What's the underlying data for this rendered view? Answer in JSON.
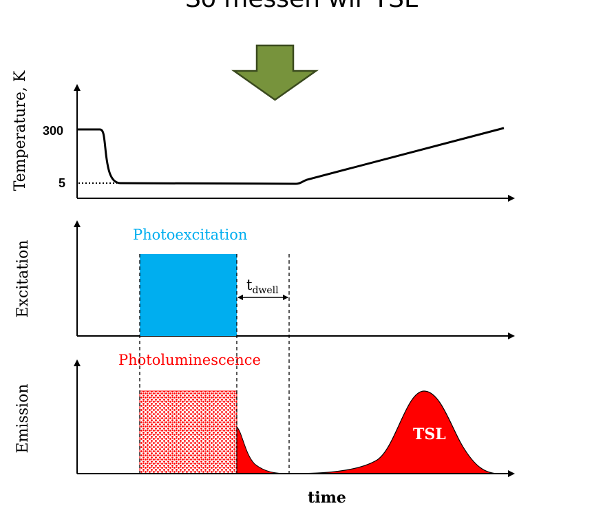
{
  "title": "So messen wir TSL",
  "colors": {
    "arrow_fill": "#77933c",
    "arrow_stroke": "#3a4a1e",
    "excitation": "#00aeef",
    "emission": "#ff0000"
  },
  "panels": {
    "temperature": {
      "ylabel": "Temperature, K",
      "ticks": [
        "300",
        "5"
      ]
    },
    "excitation": {
      "ylabel": "Excitation",
      "pulse_label": "Photoexcitation",
      "dwell_label": "t",
      "dwell_subscript": "dwell"
    },
    "emission": {
      "ylabel": "Emission",
      "pulse_label": "Photoluminescence",
      "peak_label": "TSL"
    }
  },
  "xlabel": "time"
}
